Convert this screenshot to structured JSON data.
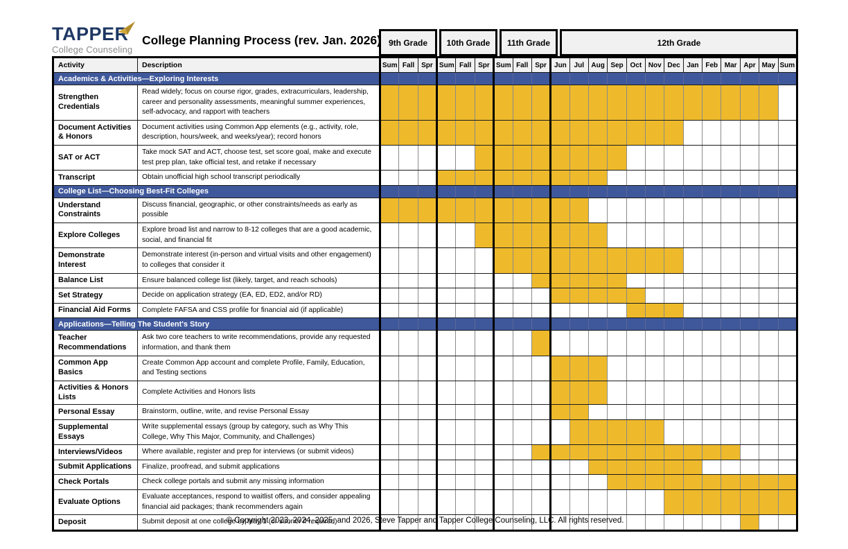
{
  "logo": {
    "name": "TAPPER",
    "tagline": "College Counseling"
  },
  "title": "College Planning Process (rev. Jan. 2026)",
  "table_headers": {
    "activity": "Activity",
    "description": "Description"
  },
  "chart_data": {
    "type": "table",
    "grade_groups": [
      {
        "label": "9th Grade",
        "cols": [
          "Sum",
          "Fall",
          "Spr"
        ]
      },
      {
        "label": "10th Grade",
        "cols": [
          "Sum",
          "Fall",
          "Spr"
        ]
      },
      {
        "label": "11th Grade",
        "cols": [
          "Sum",
          "Fall",
          "Spr"
        ]
      },
      {
        "label": "12th Grade",
        "cols": [
          "Jun",
          "Jul",
          "Aug",
          "Sep",
          "Oct",
          "Nov",
          "Dec",
          "Jan",
          "Feb",
          "Mar",
          "Apr",
          "May",
          "Sum"
        ]
      }
    ],
    "sections": [
      {
        "title": "Academics & Activities—Exploring Interests",
        "rows": [
          {
            "activity": "Strengthen Credentials",
            "description": "Read widely; focus on course rigor, grades, extracurriculars, leadership, career and personality assessments, meaningful summer experiences, self-advocacy, and rapport with teachers",
            "bar": [
              1,
              21
            ]
          },
          {
            "activity": "Document Activities & Honors",
            "description": "Document activities using Common App elements (e.g., activity, role, description, hours/week, and weeks/year); record honors",
            "bar": [
              1,
              16
            ]
          },
          {
            "activity": "SAT or ACT",
            "description": "Take mock SAT and ACT, choose test, set score goal, make and execute test prep plan, take official test, and retake if necessary",
            "bar": [
              6,
              13
            ]
          },
          {
            "activity": "Transcript",
            "description": "Obtain unofficial high school transcript periodically",
            "bar": [
              4,
              12
            ]
          }
        ]
      },
      {
        "title": "College List—Choosing Best-Fit Colleges",
        "rows": [
          {
            "activity": "Understand Constraints",
            "description": "Discuss financial, geographic, or other constraints/needs as early as possible",
            "bar": [
              1,
              11
            ]
          },
          {
            "activity": "Explore Colleges",
            "description": "Explore broad list and narrow to 8-12 colleges that are a good academic, social, and financial fit",
            "bar": [
              6,
              12
            ]
          },
          {
            "activity": "Demonstrate Interest",
            "description": "Demonstrate interest (in-person and virtual visits and other engagement) to colleges that consider it",
            "bar": [
              7,
              16
            ]
          },
          {
            "activity": "Balance List",
            "description": "Ensure balanced college list (likely, target, and reach schools)",
            "bar": [
              9,
              13
            ]
          },
          {
            "activity": "Set Strategy",
            "description": "Decide on application strategy (EA, ED, ED2, and/or RD)",
            "bar": [
              10,
              14
            ]
          },
          {
            "activity": "Financial Aid Forms",
            "description": "Complete FAFSA and CSS profile for financial aid (if applicable)",
            "bar": [
              14,
              16
            ]
          }
        ]
      },
      {
        "title": "Applications—Telling The Student's Story",
        "rows": [
          {
            "activity": "Teacher Recommendations",
            "description": "Ask two core teachers to write recommendations, provide any requested information, and thank them",
            "bar": [
              9,
              9
            ]
          },
          {
            "activity": "Common App Basics",
            "description": "Create Common App account and complete Profile, Family, Education, and Testing sections",
            "bar": [
              10,
              12
            ]
          },
          {
            "activity": "Activities & Honors Lists",
            "description": "Complete Activities and Honors lists",
            "bar": [
              10,
              12
            ]
          },
          {
            "activity": "Personal Essay",
            "description": "Brainstorm, outline, write, and revise Personal Essay",
            "bar": [
              10,
              11
            ]
          },
          {
            "activity": "Supplemental Essays",
            "description": "Write supplemental essays (group by category, such as Why This College, Why This Major, Community, and Challenges)",
            "bar": [
              11,
              15
            ]
          },
          {
            "activity": "Interviews/Videos",
            "description": "Where available, register and prep for interviews (or submit videos)",
            "bar": [
              9,
              19
            ]
          },
          {
            "activity": "Submit Applications",
            "description": "Finalize, proofread, and submit applications",
            "bar": [
              12,
              17
            ]
          },
          {
            "activity": "Check Portals",
            "description": "Check college portals and submit any missing information",
            "bar": [
              13,
              22
            ]
          },
          {
            "activity": "Evaluate Options",
            "description": "Evaluate acceptances, respond to waitlist offers, and consider appealing financial aid packages; thank recommenders again",
            "bar": [
              16,
              22
            ]
          },
          {
            "activity": "Deposit",
            "description": "Submit deposit at one college by May 1 (or sooner if required)",
            "bar": [
              20,
              20
            ]
          }
        ]
      }
    ]
  },
  "footer": "© Copyright 2023, 2024, 2025, and 2026, Steve Tapper and Tapper College Counseling, LLC. All rights reserved.",
  "colors": {
    "bar_fill": "#EEBA2B",
    "section_bg": "#3F589B",
    "header_bg": "#F1F1F1",
    "logo_navy": "#1F3864",
    "logo_gold": "#D3A93C",
    "logo_gold_dark": "#B18B2F",
    "logo_gray": "#8C8C8C"
  }
}
